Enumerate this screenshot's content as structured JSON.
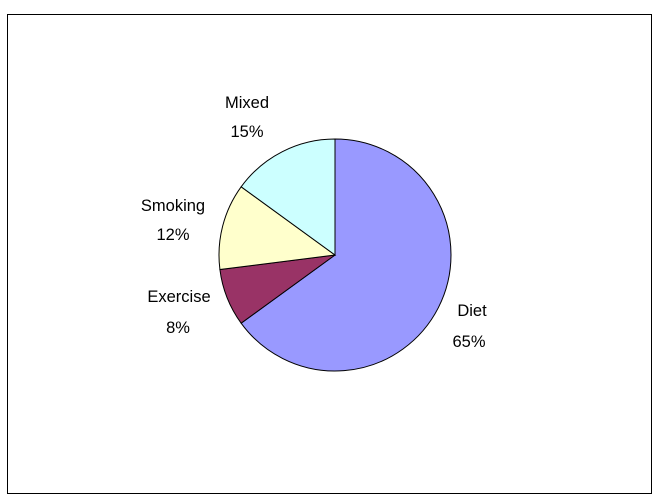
{
  "chart_data": {
    "type": "pie",
    "title": "",
    "slices": [
      {
        "name": "Diet",
        "value": 65,
        "label": "65%",
        "color": "#9999ff"
      },
      {
        "name": "Exercise",
        "value": 8,
        "label": "8%",
        "color": "#993366"
      },
      {
        "name": "Smoking",
        "value": 12,
        "label": "12%",
        "color": "#ffffcc"
      },
      {
        "name": "Mixed",
        "value": 15,
        "label": "15%",
        "color": "#ccffff"
      }
    ],
    "legend": "none",
    "data_labels": "category name and percentage"
  }
}
